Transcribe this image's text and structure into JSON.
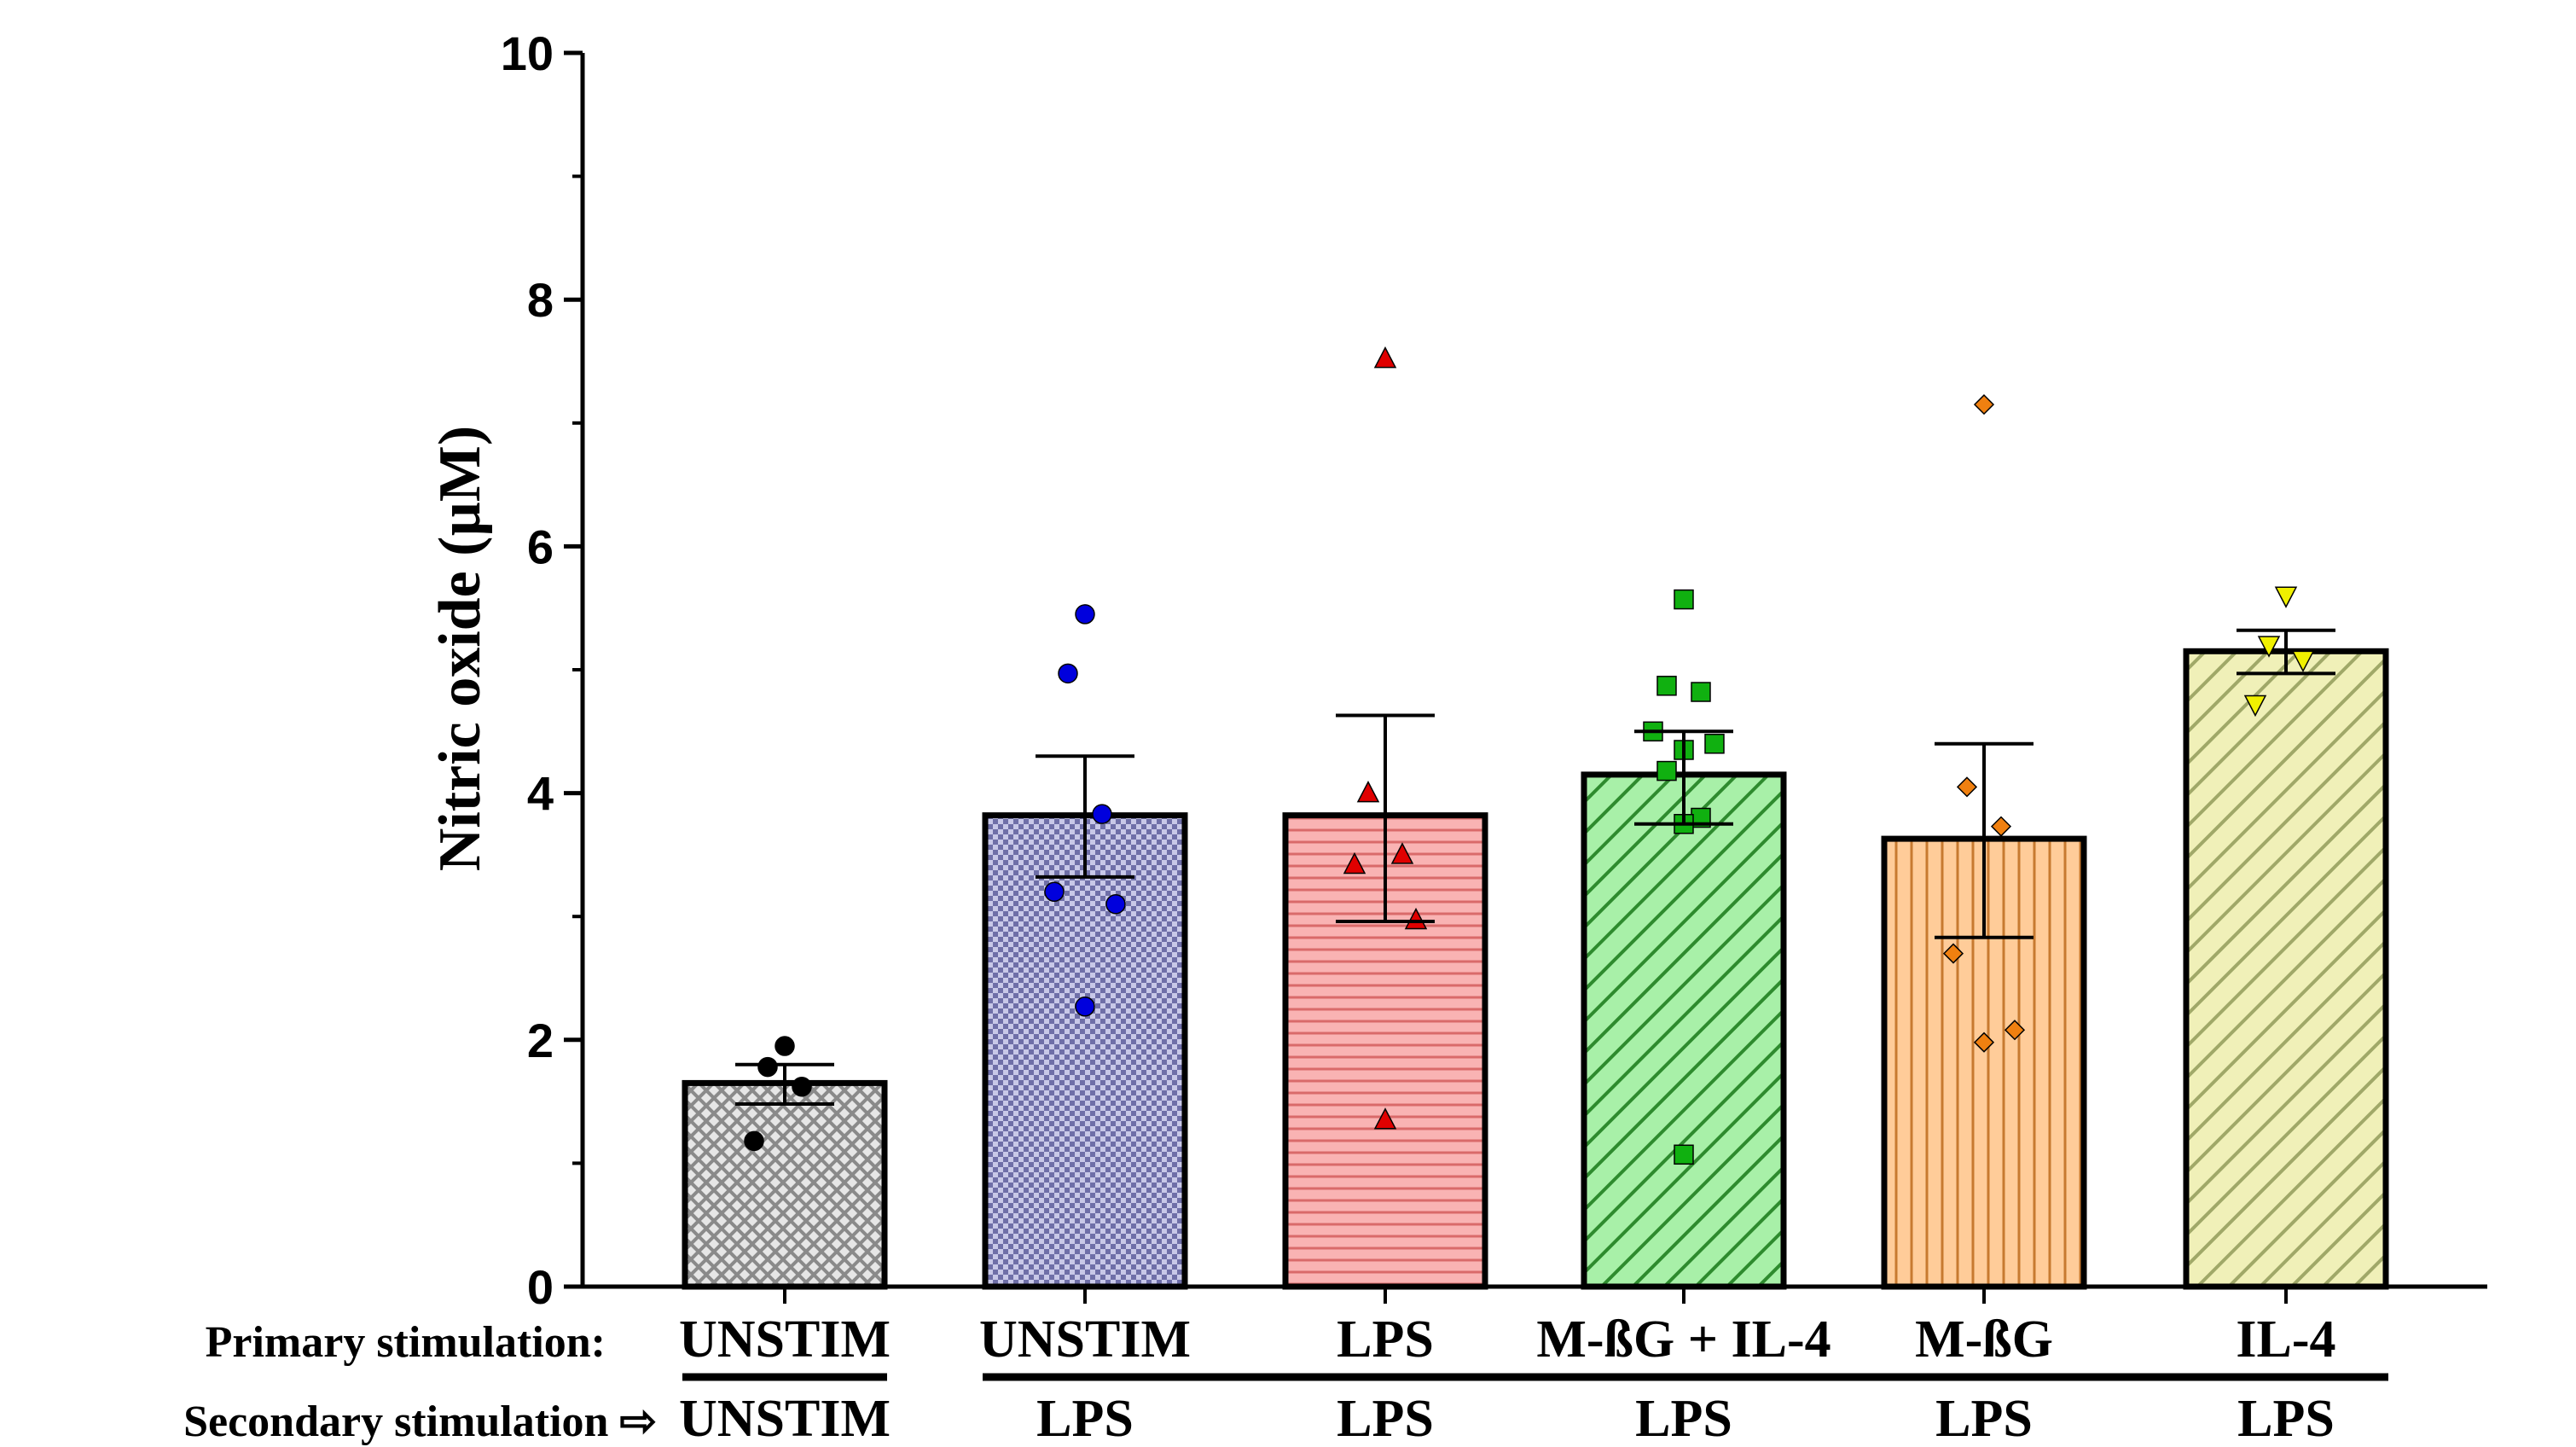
{
  "chart_data": {
    "type": "bar",
    "title": "",
    "ylabel": "Nitric oxide (µM)",
    "xlabel": "",
    "ylim": [
      0,
      10
    ],
    "yticks": [
      "0",
      "2",
      "4",
      "6",
      "8",
      "10"
    ],
    "row_labels": {
      "primary": "Primary stimulation:",
      "secondary": "Secondary stimulation ⇨"
    },
    "categories": [
      {
        "primary": "UNSTIM",
        "secondary": "UNSTIM",
        "mean": 1.65,
        "sem_upper": 1.8,
        "sem_lower": 1.48,
        "fill": "#e6e6e6",
        "pattern_color": "#8a8a8a",
        "pattern": "crosshatch",
        "marker": "circle",
        "marker_color": "#000000",
        "points": [
          1.95,
          1.78,
          1.62,
          1.18
        ]
      },
      {
        "primary": "UNSTIM",
        "secondary": "LPS",
        "mean": 3.82,
        "sem_upper": 4.3,
        "sem_lower": 3.32,
        "fill": "#c8c8e8",
        "pattern_color": "#6f6fa8",
        "pattern": "checker",
        "marker": "circle",
        "marker_color": "#0000dd",
        "points": [
          5.45,
          4.97,
          3.83,
          3.2,
          3.1,
          2.27
        ]
      },
      {
        "primary": "LPS",
        "secondary": "LPS",
        "mean": 3.82,
        "sem_upper": 4.63,
        "sem_lower": 2.96,
        "fill": "#f9b3b3",
        "pattern_color": "#d96a6a",
        "pattern": "hlines",
        "marker": "triangle-up",
        "marker_color": "#e00000",
        "points": [
          7.52,
          4.0,
          3.5,
          3.42,
          2.97,
          1.35
        ]
      },
      {
        "primary": "M-ßG + IL-4",
        "secondary": "LPS",
        "mean": 4.15,
        "sem_upper": 4.5,
        "sem_lower": 3.75,
        "fill": "#a8f0a8",
        "pattern_color": "#2e8b2e",
        "pattern": "diag",
        "marker": "square",
        "marker_color": "#10b010",
        "points": [
          5.57,
          4.87,
          4.82,
          4.5,
          4.4,
          4.35,
          4.18,
          3.8,
          3.75,
          1.07
        ]
      },
      {
        "primary": "M-ßG",
        "secondary": "LPS",
        "mean": 3.63,
        "sem_upper": 4.4,
        "sem_lower": 2.83,
        "fill": "#ffcc99",
        "pattern_color": "#c77a30",
        "pattern": "vlines",
        "marker": "diamond",
        "marker_color": "#f08010",
        "points": [
          7.15,
          4.05,
          3.73,
          2.7,
          2.08,
          1.98
        ]
      },
      {
        "primary": "IL-4",
        "secondary": "LPS",
        "mean": 5.15,
        "sem_upper": 5.32,
        "sem_lower": 4.97,
        "fill": "#f0f0b8",
        "pattern_color": "#a0a868",
        "pattern": "diag",
        "marker": "triangle-down",
        "marker_color": "#f0f000",
        "points": [
          5.6,
          5.2,
          5.08,
          4.72
        ]
      }
    ]
  }
}
